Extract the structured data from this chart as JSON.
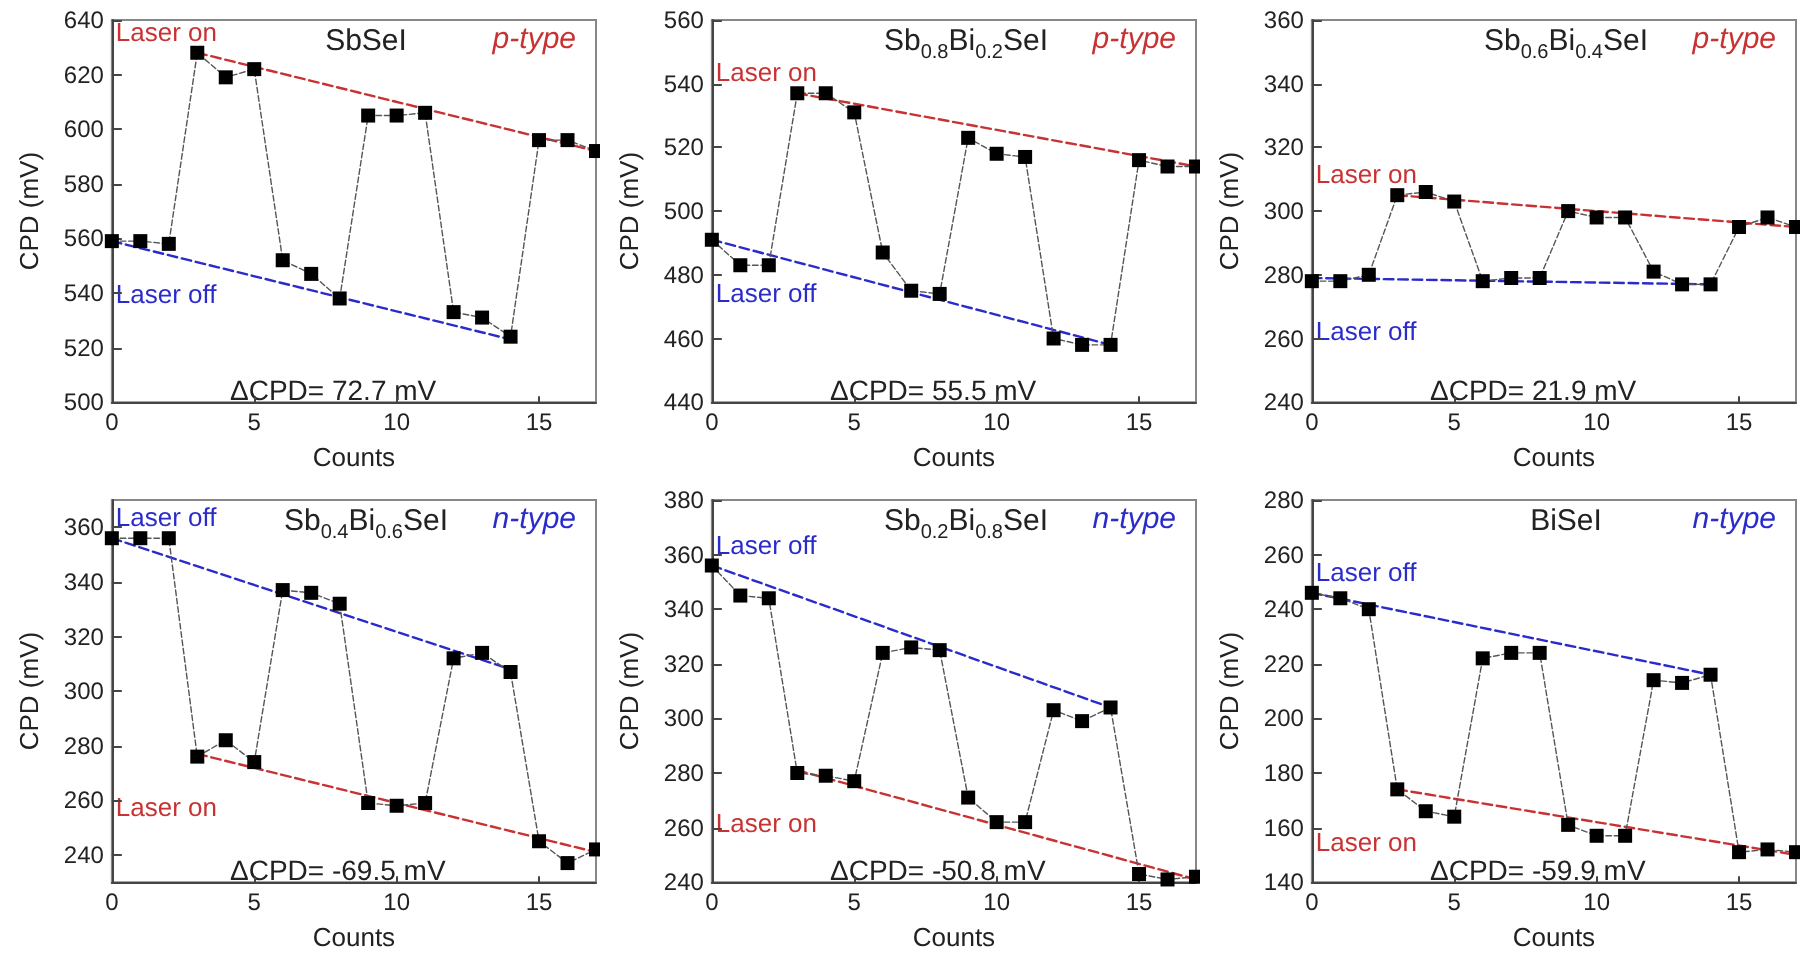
{
  "chart_data": [
    {
      "type": "line",
      "title": "SbSeI",
      "xlabel": "Counts",
      "ylabel": "CPD (mV)",
      "x": [
        0,
        1,
        2,
        3,
        4,
        5,
        6,
        7,
        8,
        9,
        10,
        11,
        12,
        13,
        14,
        15,
        16,
        17
      ],
      "xlim": [
        0,
        17
      ],
      "xticks": [
        0,
        5,
        10,
        15
      ],
      "ylim": [
        500,
        640
      ],
      "yticks": [
        500,
        520,
        540,
        560,
        580,
        600,
        620,
        640
      ],
      "marker": "square",
      "line_style": "dashed",
      "annotations": [
        "p-type",
        "ΔCPD= 72.7 mV"
      ],
      "series": [
        {
          "color": "#000000",
          "values": [
            559,
            559,
            558,
            628,
            619,
            622,
            552,
            547,
            538,
            605,
            605,
            606,
            533,
            531,
            524,
            596,
            596,
            592
          ]
        },
        {
          "name": "Laser on",
          "color": "#c83232",
          "x": [
            3,
            17
          ],
          "values": [
            628,
            592
          ],
          "marker": "none"
        },
        {
          "name": "Laser off",
          "color": "#2b2bcc",
          "x": [
            0,
            14
          ],
          "values": [
            559,
            523
          ],
          "marker": "none"
        }
      ]
    },
    {
      "type": "line",
      "title": "Sb$_{0.8}$Bi$_{0.2}$SeI",
      "xlabel": "Counts",
      "ylabel": "CPD (mV)",
      "x": [
        0,
        1,
        2,
        3,
        4,
        5,
        6,
        7,
        8,
        9,
        10,
        11,
        12,
        13,
        14,
        15,
        16,
        17
      ],
      "xlim": [
        0,
        17
      ],
      "xticks": [
        0,
        5,
        10,
        15
      ],
      "ylim": [
        440,
        560
      ],
      "yticks": [
        440,
        460,
        480,
        500,
        520,
        540,
        560
      ],
      "marker": "square",
      "line_style": "dashed",
      "annotations": [
        "p-type",
        "ΔCPD= 55.5 mV"
      ],
      "series": [
        {
          "color": "#000000",
          "values": [
            491,
            483,
            483,
            537,
            537,
            531,
            487,
            475,
            474,
            523,
            518,
            517,
            460,
            458,
            458,
            516,
            514,
            514
          ]
        },
        {
          "name": "Laser on",
          "color": "#c83232",
          "x": [
            3,
            17
          ],
          "values": [
            537,
            514
          ],
          "marker": "none"
        },
        {
          "name": "Laser off",
          "color": "#2b2bcc",
          "x": [
            0,
            14
          ],
          "values": [
            491,
            458
          ],
          "marker": "none"
        }
      ]
    },
    {
      "type": "line",
      "title": "Sb$_{0.6}$Bi$_{0.4}$SeI",
      "xlabel": "Counts",
      "ylabel": "CPD (mV)",
      "x": [
        0,
        1,
        2,
        3,
        4,
        5,
        6,
        7,
        8,
        9,
        10,
        11,
        12,
        13,
        14,
        15,
        16,
        17
      ],
      "xlim": [
        0,
        17
      ],
      "xticks": [
        0,
        5,
        10,
        15
      ],
      "ylim": [
        240,
        360
      ],
      "yticks": [
        240,
        260,
        280,
        300,
        320,
        340,
        360
      ],
      "marker": "square",
      "line_style": "dashed",
      "annotations": [
        "p-type",
        "ΔCPD= 21.9 mV"
      ],
      "series": [
        {
          "color": "#000000",
          "values": [
            278,
            278,
            280,
            305,
            306,
            303,
            278,
            279,
            279,
            300,
            298,
            298,
            281,
            277,
            277,
            295,
            298,
            295
          ]
        },
        {
          "name": "Laser on",
          "color": "#c83232",
          "x": [
            3,
            17
          ],
          "values": [
            305,
            295
          ],
          "marker": "none"
        },
        {
          "name": "Laser off",
          "color": "#2b2bcc",
          "x": [
            0,
            14
          ],
          "values": [
            279,
            277
          ],
          "marker": "none"
        }
      ]
    },
    {
      "type": "line",
      "title": "Sb$_{0.4}$Bi$_{0.6}$SeI",
      "xlabel": "Counts",
      "ylabel": "CPD (mV)",
      "x": [
        0,
        1,
        2,
        3,
        4,
        5,
        6,
        7,
        8,
        9,
        10,
        11,
        12,
        13,
        14,
        15,
        16,
        17
      ],
      "xlim": [
        0,
        17
      ],
      "xticks": [
        0,
        5,
        10,
        15
      ],
      "ylim": [
        230,
        370
      ],
      "yticks": [
        240,
        260,
        280,
        300,
        320,
        340,
        360
      ],
      "marker": "square",
      "line_style": "dashed",
      "annotations": [
        "n-type",
        "ΔCPD= -69.5 mV"
      ],
      "series": [
        {
          "color": "#000000",
          "values": [
            356,
            356,
            356,
            276,
            282,
            274,
            337,
            336,
            332,
            259,
            258,
            259,
            312,
            314,
            307,
            245,
            237,
            242
          ]
        },
        {
          "name": "Laser off",
          "color": "#2b2bcc",
          "x": [
            0,
            14
          ],
          "values": [
            356,
            308
          ],
          "marker": "none"
        },
        {
          "name": "Laser on",
          "color": "#c83232",
          "x": [
            3,
            17
          ],
          "values": [
            277,
            241
          ],
          "marker": "none"
        }
      ]
    },
    {
      "type": "line",
      "title": "Sb$_{0.2}$Bi$_{0.8}$SeI",
      "xlabel": "Counts",
      "ylabel": "CPD (mV)",
      "x": [
        0,
        1,
        2,
        3,
        4,
        5,
        6,
        7,
        8,
        9,
        10,
        11,
        12,
        13,
        14,
        15,
        16,
        17
      ],
      "xlim": [
        0,
        17
      ],
      "xticks": [
        0,
        5,
        10,
        15
      ],
      "ylim": [
        240,
        380
      ],
      "yticks": [
        240,
        260,
        280,
        300,
        320,
        340,
        360,
        380
      ],
      "marker": "square",
      "line_style": "dashed",
      "annotations": [
        "n-type",
        "ΔCPD= -50.8 mV"
      ],
      "series": [
        {
          "color": "#000000",
          "values": [
            356,
            345,
            344,
            280,
            279,
            277,
            324,
            326,
            325,
            271,
            262,
            262,
            303,
            299,
            304,
            243,
            241,
            242
          ]
        },
        {
          "name": "Laser off",
          "color": "#2b2bcc",
          "x": [
            0,
            14
          ],
          "values": [
            356,
            304
          ],
          "marker": "none"
        },
        {
          "name": "Laser on",
          "color": "#c83232",
          "x": [
            3,
            17
          ],
          "values": [
            281,
            241
          ],
          "marker": "none"
        }
      ]
    },
    {
      "type": "line",
      "title": "BiSeI",
      "xlabel": "Counts",
      "ylabel": "CPD (mV)",
      "x": [
        0,
        1,
        2,
        3,
        4,
        5,
        6,
        7,
        8,
        9,
        10,
        11,
        12,
        13,
        14,
        15,
        16,
        17
      ],
      "xlim": [
        0,
        17
      ],
      "xticks": [
        0,
        5,
        10,
        15
      ],
      "ylim": [
        140,
        280
      ],
      "yticks": [
        140,
        160,
        180,
        200,
        220,
        240,
        260,
        280
      ],
      "marker": "square",
      "line_style": "dashed",
      "annotations": [
        "n-type",
        "ΔCPD= -59.9 mV"
      ],
      "series": [
        {
          "color": "#000000",
          "values": [
            246,
            244,
            240,
            174,
            166,
            164,
            222,
            224,
            224,
            161,
            157,
            157,
            214,
            213,
            216,
            151,
            152,
            151
          ]
        },
        {
          "name": "Laser off",
          "color": "#2b2bcc",
          "x": [
            0,
            14
          ],
          "values": [
            246,
            216
          ],
          "marker": "none"
        },
        {
          "name": "Laser on",
          "color": "#c83232",
          "x": [
            3,
            17
          ],
          "values": [
            174,
            150
          ],
          "marker": "none"
        }
      ]
    }
  ]
}
